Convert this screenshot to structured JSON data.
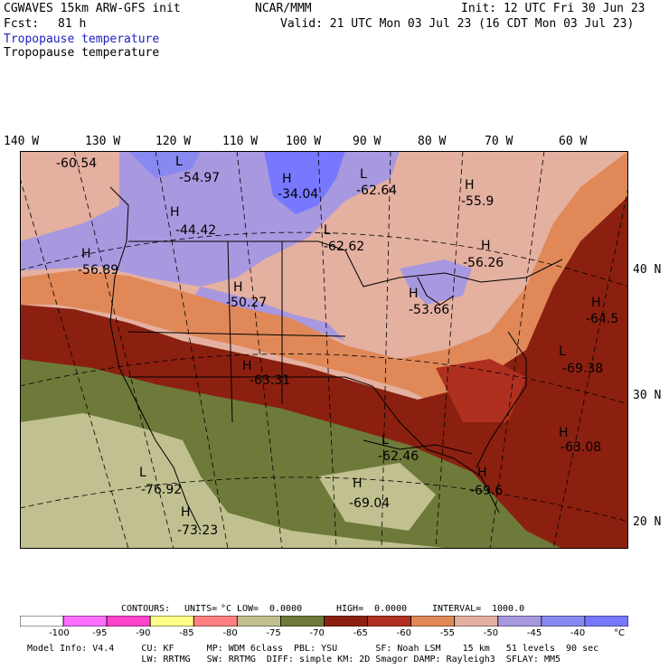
{
  "header": {
    "model": "CGWAVES 15km ARW-GFS init",
    "org": "NCAR/MMM",
    "init": "Init: 12 UTC Fri 30 Jun 23",
    "fcst_label": "Fcst:",
    "fcst_value": "81 h",
    "valid": "Valid: 21 UTC Mon 03 Jul 23 (16 CDT Mon 03 Jul 23)",
    "field_title_1": "Tropopause temperature",
    "field_title_2": "Tropopause temperature"
  },
  "map": {
    "longitude_labels": [
      "140 W",
      "130 W",
      "120 W",
      "110 W",
      "100 W",
      "90 W",
      "80 W",
      "70 W",
      "60 W"
    ],
    "latitude_labels": [
      "40 N",
      "30 N",
      "20 N"
    ],
    "extrema": [
      {
        "type": "",
        "value": "-60.54"
      },
      {
        "type": "L",
        "value": "-54.97"
      },
      {
        "type": "H",
        "value": "-34.04"
      },
      {
        "type": "L",
        "value": "-62.64"
      },
      {
        "type": "H",
        "value": "-55.9"
      },
      {
        "type": "H",
        "value": "-44.42"
      },
      {
        "type": "H",
        "value": "-56.89"
      },
      {
        "type": "L",
        "value": "-62.62"
      },
      {
        "type": "H",
        "value": "-56.26"
      },
      {
        "type": "H",
        "value": "-50.27"
      },
      {
        "type": "H",
        "value": "-53.66"
      },
      {
        "type": "H",
        "value": "-64.5"
      },
      {
        "type": "L",
        "value": "-69.38"
      },
      {
        "type": "H",
        "value": "-63.31"
      },
      {
        "type": "H",
        "value": "-63.08"
      },
      {
        "type": "L",
        "value": "-62.46"
      },
      {
        "type": "L",
        "value": "-76.92"
      },
      {
        "type": "H",
        "value": "-69.04"
      },
      {
        "type": "H",
        "value": "-69.6"
      },
      {
        "type": "H",
        "value": "-73.23"
      }
    ]
  },
  "contours": {
    "label": "CONTOURS:",
    "units_label": "UNITS=",
    "units": "°C",
    "low_label": "LOW=",
    "low": "0.0000",
    "high_label": "HIGH=",
    "high": "0.0000",
    "interval_label": "INTERVAL=",
    "interval": "1000.0"
  },
  "legend": {
    "colors": [
      "#ffffff",
      "#ff6eff",
      "#ff44cc",
      "#ffff88",
      "#ff8080",
      "#c0c090",
      "#6e7a3a",
      "#8b2010",
      "#b03020",
      "#e08858",
      "#e4b0a0",
      "#a898e0",
      "#8888f0",
      "#7878ff"
    ],
    "ticks": [
      "-100",
      "-95",
      "-90",
      "-85",
      "-80",
      "-75",
      "-70",
      "-65",
      "-60",
      "-55",
      "-50",
      "-45",
      "-40",
      "°C"
    ]
  },
  "footer": {
    "line1": "Model Info: V4.4     CU: KF      MP: WDM 6class  PBL: YSU       SF: Noah LSM    15 km   51 levels  90 sec",
    "line2": "                     LW: RRTMG   SW: RRTMG  DIFF: simple KM: 2D Smagor DAMP: Rayleigh3  SFLAY: MM5"
  }
}
